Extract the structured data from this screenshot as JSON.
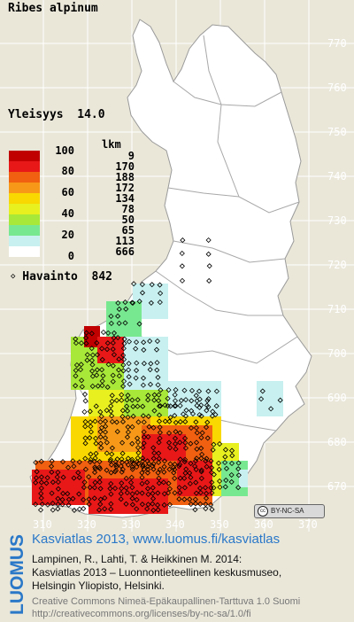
{
  "species": "Ribes alpinum",
  "frequency_label": "Yleisyys",
  "frequency_value": "14.0",
  "legend": {
    "count_header": "lkm",
    "classes": [
      {
        "label": "100",
        "count": "9",
        "color": "#c00000"
      },
      {
        "label": "",
        "count": "170",
        "color": "#e81818"
      },
      {
        "label": "80",
        "count": "188",
        "color": "#f06010"
      },
      {
        "label": "",
        "count": "172",
        "color": "#f89818"
      },
      {
        "label": "60",
        "count": "134",
        "color": "#f8d800"
      },
      {
        "label": "",
        "count": "78",
        "color": "#e8f020"
      },
      {
        "label": "40",
        "count": "50",
        "color": "#a8e838"
      },
      {
        "label": "",
        "count": "65",
        "color": "#78e890"
      },
      {
        "label": "20",
        "count": "113",
        "color": "#c8f0f0"
      },
      {
        "label": "0",
        "count": "666",
        "color": "#ffffff"
      }
    ]
  },
  "observation": {
    "label": "Havainto",
    "count": "842"
  },
  "axes": {
    "x_ticks": [
      "310",
      "320",
      "330",
      "340",
      "350",
      "360",
      "370"
    ],
    "y_ticks": [
      "770",
      "760",
      "750",
      "740",
      "730",
      "720",
      "710",
      "700",
      "690",
      "680",
      "670"
    ]
  },
  "license_badge": "BY-NC-SA",
  "footer": {
    "brand": "LUOMUS",
    "title": "Kasviatlas 2013, www.luomus.fi/kasviatlas",
    "citation_1": "Lampinen, R., Lahti, T. & Heikkinen M. 2014:",
    "citation_2": "Kasviatlas 2013 – Luonnontieteellinen keskusmuseo,",
    "citation_3": "Helsingin Yliopisto, Helsinki.",
    "license_1": "Creative Commons Nimeä-Epäkaupallinen-Tarttuva 1.0 Suomi",
    "license_2": "http://creativecommons.org/licenses/by-nc-sa/1.0/fi"
  },
  "colors": {
    "background": "#eae7d9",
    "land": "#ffffff",
    "border": "#b0b0b0",
    "brand": "#2a78c8"
  }
}
